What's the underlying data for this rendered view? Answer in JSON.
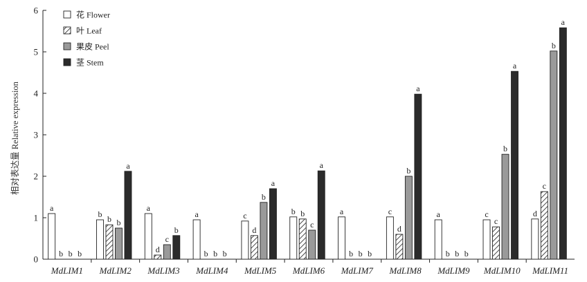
{
  "chart_data": {
    "type": "bar",
    "ylabel": "相对表达量 Relative expression",
    "xlabel": "",
    "ylim": [
      0,
      6
    ],
    "yticks": [
      0,
      1,
      2,
      3,
      4,
      5,
      6
    ],
    "grid": false,
    "legend_position": "top-left",
    "categories": [
      "MdLIM1",
      "MdLIM2",
      "MdLIM3",
      "MdLIM4",
      "MdLIM5",
      "MdLIM6",
      "MdLIM7",
      "MdLIM8",
      "MdLIM9",
      "MdLIM10",
      "MdLIM11"
    ],
    "series": [
      {
        "name": "花 Flower",
        "style": "white",
        "values": [
          1.1,
          0.95,
          1.1,
          0.95,
          0.92,
          1.02,
          1.02,
          1.02,
          0.95,
          0.95,
          0.97
        ],
        "labels": [
          "a",
          "b",
          "a",
          "a",
          "c",
          "b",
          "a",
          "c",
          "a",
          "c",
          "d"
        ]
      },
      {
        "name": "叶 Leaf",
        "style": "hatched",
        "values": [
          0,
          0.83,
          0.1,
          0,
          0.57,
          0.97,
          0,
          0.6,
          0,
          0.78,
          1.63
        ],
        "labels": [
          "b",
          "b",
          "d",
          "b",
          "d",
          "b",
          "b",
          "d",
          "b",
          "c",
          "c"
        ]
      },
      {
        "name": "果皮 Peel",
        "style": "gray",
        "values": [
          0,
          0.75,
          0.35,
          0,
          1.37,
          0.7,
          0,
          2.0,
          0,
          2.53,
          5.02
        ],
        "labels": [
          "b",
          "b",
          "c",
          "b",
          "b",
          "c",
          "b",
          "b",
          "b",
          "b",
          "b"
        ]
      },
      {
        "name": "茎 Stem",
        "style": "black",
        "values": [
          0,
          2.12,
          0.57,
          0,
          1.7,
          2.13,
          0,
          3.98,
          0,
          4.53,
          5.58
        ],
        "labels": [
          "b",
          "a",
          "b",
          "b",
          "a",
          "a",
          "b",
          "a",
          "b",
          "a",
          "a"
        ]
      }
    ]
  },
  "colors": {
    "white": "#ffffff",
    "gray": "#9a9a9a",
    "black": "#2b2b2b",
    "stroke": "#222222",
    "hatch": "#333333"
  }
}
